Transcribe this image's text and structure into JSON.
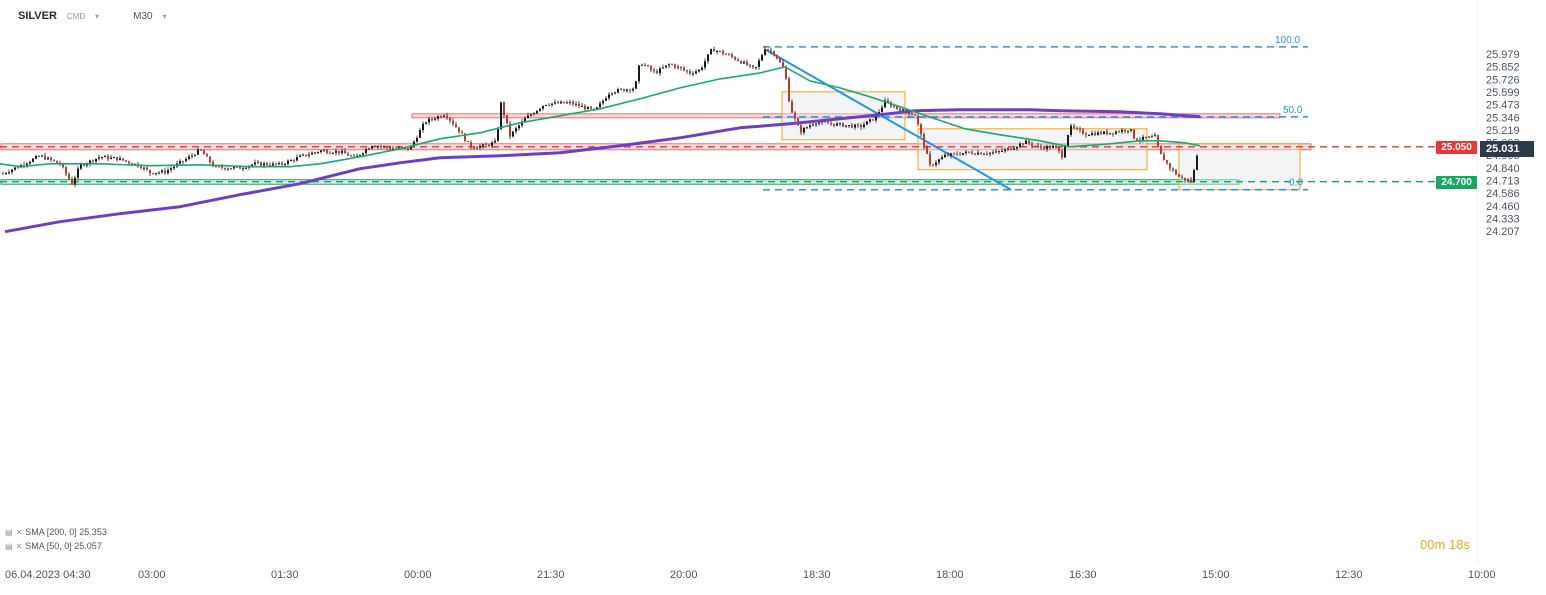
{
  "header": {
    "symbol": "SILVER",
    "source": "CMD",
    "timeframe": "M30"
  },
  "legend": [
    {
      "label": "SMA [200,  0] 25.353",
      "color": "#6c3fc5"
    },
    {
      "label": "SMA [50,  0] 25.057",
      "color": "#1aab6f"
    }
  ],
  "timer": "00m 18s",
  "levels": {
    "resistance_label": "25.050",
    "support_label": "24.700",
    "last_price_label": "25.031"
  },
  "fib_labels": [
    "100.0",
    "50.0",
    "0.0"
  ],
  "colors": {
    "candle_up": "#1a1a1a",
    "candle_down": "#c0392b",
    "sma200": "#6c3fc5",
    "sma50": "#1aab6f",
    "resistance": "#e53935",
    "support": "#17a864",
    "fib": "#2196f3",
    "box": "#f5a623"
  },
  "chart_data": {
    "type": "candlestick",
    "title": "SILVER",
    "timeframe": "M30",
    "y_tick_labels": [
      "25.979",
      "25.852",
      "25.726",
      "25.599",
      "25.473",
      "25.346",
      "25.219",
      "25.093",
      "24.966",
      "24.840",
      "24.713",
      "24.586",
      "24.460",
      "24.333",
      "24.207"
    ],
    "x_tick_labels": [
      "06.04.2023 04:30",
      "03:00",
      "01:30",
      "00:00",
      "21:30",
      "20:00",
      "18:30",
      "18:00",
      "16:30",
      "15:00",
      "12:30",
      "10:00"
    ],
    "ylim": [
      24.207,
      26.05
    ],
    "anchors": [
      [
        0,
        24.77
      ],
      [
        20,
        24.86
      ],
      [
        40,
        24.96
      ],
      [
        60,
        24.88
      ],
      [
        72,
        24.68
      ],
      [
        80,
        24.86
      ],
      [
        100,
        24.95
      ],
      [
        118,
        24.93
      ],
      [
        140,
        24.86
      ],
      [
        150,
        24.79
      ],
      [
        165,
        24.8
      ],
      [
        190,
        24.95
      ],
      [
        200,
        25.02
      ],
      [
        215,
        24.84
      ],
      [
        240,
        24.84
      ],
      [
        255,
        24.88
      ],
      [
        280,
        24.87
      ],
      [
        300,
        24.95
      ],
      [
        320,
        25.01
      ],
      [
        340,
        25.0
      ],
      [
        355,
        24.94
      ],
      [
        372,
        25.07
      ],
      [
        395,
        25.03
      ],
      [
        410,
        25.03
      ],
      [
        425,
        25.3
      ],
      [
        445,
        25.38
      ],
      [
        460,
        25.2
      ],
      [
        470,
        25.05
      ],
      [
        485,
        25.06
      ],
      [
        497,
        25.1
      ],
      [
        500,
        25.52
      ],
      [
        510,
        25.16
      ],
      [
        525,
        25.33
      ],
      [
        545,
        25.48
      ],
      [
        570,
        25.49
      ],
      [
        595,
        25.41
      ],
      [
        610,
        25.6
      ],
      [
        635,
        25.64
      ],
      [
        640,
        25.9
      ],
      [
        655,
        25.79
      ],
      [
        670,
        25.88
      ],
      [
        690,
        25.79
      ],
      [
        700,
        25.82
      ],
      [
        712,
        26.03
      ],
      [
        730,
        25.96
      ],
      [
        745,
        25.88
      ],
      [
        755,
        25.82
      ],
      [
        765,
        26.04
      ],
      [
        775,
        25.98
      ],
      [
        785,
        25.8
      ],
      [
        790,
        25.45
      ],
      [
        800,
        25.2
      ],
      [
        815,
        25.3
      ],
      [
        840,
        25.27
      ],
      [
        860,
        25.25
      ],
      [
        875,
        25.34
      ],
      [
        885,
        25.5
      ],
      [
        900,
        25.42
      ],
      [
        915,
        25.37
      ],
      [
        920,
        25.2
      ],
      [
        930,
        24.86
      ],
      [
        945,
        24.96
      ],
      [
        965,
        24.99
      ],
      [
        995,
        24.99
      ],
      [
        1010,
        25.03
      ],
      [
        1025,
        25.1
      ],
      [
        1040,
        25.04
      ],
      [
        1055,
        25.05
      ],
      [
        1062,
        24.96
      ],
      [
        1070,
        25.25
      ],
      [
        1085,
        25.18
      ],
      [
        1110,
        25.19
      ],
      [
        1130,
        25.23
      ],
      [
        1135,
        25.12
      ],
      [
        1155,
        25.15
      ],
      [
        1160,
        24.98
      ],
      [
        1170,
        24.84
      ],
      [
        1180,
        24.74
      ],
      [
        1192,
        24.7
      ],
      [
        1198,
        25.03
      ]
    ],
    "sma50_path": [
      [
        0,
        24.88
      ],
      [
        20,
        24.85
      ],
      [
        50,
        24.88
      ],
      [
        100,
        24.88
      ],
      [
        150,
        24.86
      ],
      [
        200,
        24.87
      ],
      [
        250,
        24.85
      ],
      [
        290,
        24.85
      ],
      [
        320,
        24.88
      ],
      [
        360,
        24.95
      ],
      [
        400,
        25.03
      ],
      [
        440,
        25.13
      ],
      [
        480,
        25.19
      ],
      [
        520,
        25.29
      ],
      [
        560,
        25.36
      ],
      [
        600,
        25.43
      ],
      [
        640,
        25.53
      ],
      [
        680,
        25.64
      ],
      [
        720,
        25.73
      ],
      [
        760,
        25.79
      ],
      [
        785,
        25.85
      ],
      [
        810,
        25.71
      ],
      [
        840,
        25.64
      ],
      [
        870,
        25.55
      ],
      [
        900,
        25.45
      ],
      [
        935,
        25.33
      ],
      [
        965,
        25.23
      ],
      [
        1000,
        25.17
      ],
      [
        1040,
        25.11
      ],
      [
        1070,
        25.05
      ],
      [
        1110,
        25.08
      ],
      [
        1140,
        25.11
      ],
      [
        1160,
        25.11
      ],
      [
        1185,
        25.09
      ],
      [
        1200,
        25.06
      ]
    ],
    "sma200_path": [
      [
        5,
        24.2
      ],
      [
        60,
        24.3
      ],
      [
        120,
        24.38
      ],
      [
        180,
        24.45
      ],
      [
        240,
        24.57
      ],
      [
        300,
        24.68
      ],
      [
        360,
        24.83
      ],
      [
        400,
        24.89
      ],
      [
        440,
        24.94
      ],
      [
        500,
        24.96
      ],
      [
        560,
        24.99
      ],
      [
        620,
        25.06
      ],
      [
        680,
        25.14
      ],
      [
        740,
        25.24
      ],
      [
        790,
        25.28
      ],
      [
        840,
        25.33
      ],
      [
        880,
        25.37
      ],
      [
        915,
        25.41
      ],
      [
        960,
        25.42
      ],
      [
        1030,
        25.42
      ],
      [
        1060,
        25.41
      ],
      [
        1120,
        25.4
      ],
      [
        1160,
        25.38
      ],
      [
        1200,
        25.35
      ]
    ],
    "last_price": 25.031,
    "resistance": 25.05,
    "support": 24.7,
    "resistance_zone": [
      25.02,
      25.08
    ],
    "upper_zone": [
      25.34,
      25.38
    ],
    "support_zone": [
      24.675,
      24.72
    ],
    "fibonacci": [
      {
        "label": "100.0",
        "value": 26.05
      },
      {
        "label": "50.0",
        "value": 25.35
      },
      {
        "label": "0.0",
        "value": 24.62
      }
    ],
    "sma": [
      {
        "period": 200,
        "value": 25.353
      },
      {
        "period": 50,
        "value": 25.057
      }
    ]
  }
}
